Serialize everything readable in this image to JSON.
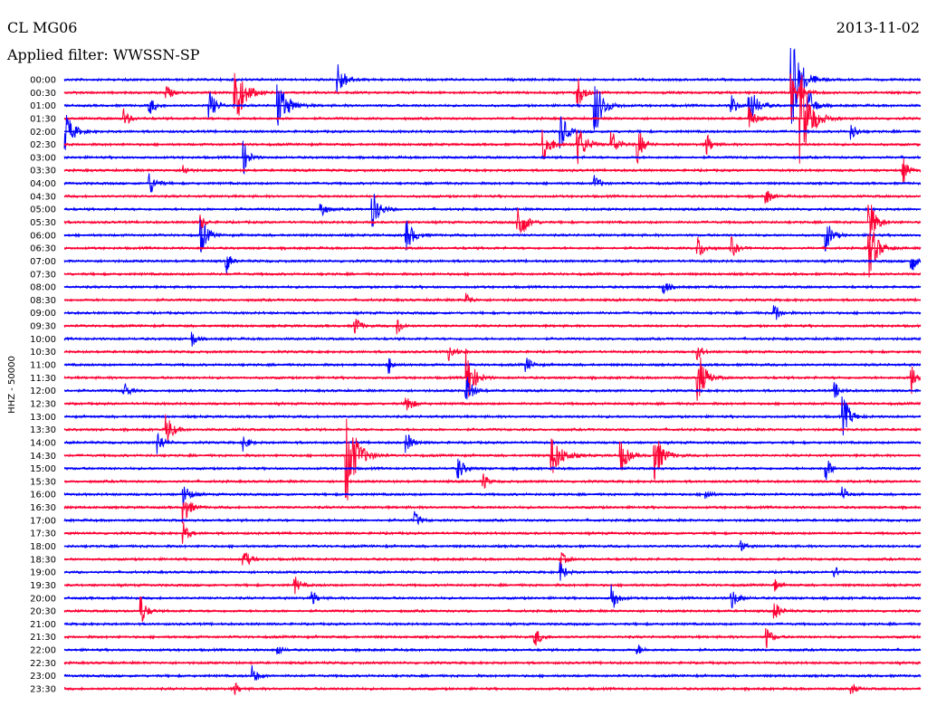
{
  "header": {
    "station": "CL MG06",
    "filter": "Applied filter: WWSSN-SP",
    "date": "2013-11-02"
  },
  "chart_data": {
    "type": "line",
    "title": "CL MG06",
    "subtitle": "Applied filter: WWSSN-SP",
    "date": "2013-11-02",
    "ylabel": "HHZ - 50000",
    "xlabel": "",
    "trace_duration_min": 30,
    "colors": [
      "#0000ff",
      "#ff0033"
    ],
    "grid": false,
    "rows": [
      {
        "label": "00:00",
        "color": "#0000ff",
        "events": [
          [
            0.32,
            0.8,
            0.8
          ],
          [
            0.85,
            2.5,
            0.9
          ]
        ]
      },
      {
        "label": "00:30",
        "color": "#ff0033",
        "events": [
          [
            0.12,
            0.4,
            0.5
          ],
          [
            0.2,
            1.8,
            0.9
          ],
          [
            0.6,
            0.8,
            0.6
          ],
          [
            0.85,
            1.2,
            0.8
          ]
        ]
      },
      {
        "label": "01:00",
        "color": "#0000ff",
        "events": [
          [
            0.1,
            0.5,
            0.5
          ],
          [
            0.17,
            0.8,
            0.6
          ],
          [
            0.25,
            1.2,
            1.0
          ],
          [
            0.62,
            1.5,
            0.8
          ],
          [
            0.78,
            0.5,
            0.5
          ],
          [
            0.8,
            1.0,
            0.8
          ],
          [
            0.87,
            0.8,
            0.6
          ]
        ]
      },
      {
        "label": "01:30",
        "color": "#ff0033",
        "events": [
          [
            0.07,
            0.5,
            0.5
          ],
          [
            0.8,
            0.6,
            0.6
          ],
          [
            0.86,
            2.5,
            1.0
          ]
        ]
      },
      {
        "label": "02:00",
        "color": "#0000ff",
        "events": [
          [
            0.0,
            1.2,
            0.8
          ],
          [
            0.58,
            1.0,
            0.6
          ],
          [
            0.92,
            0.4,
            0.5
          ]
        ]
      },
      {
        "label": "02:30",
        "color": "#ff0033",
        "events": [
          [
            0.56,
            0.8,
            0.8
          ],
          [
            0.6,
            1.0,
            0.8
          ],
          [
            0.64,
            0.7,
            0.6
          ],
          [
            0.67,
            1.0,
            0.5
          ],
          [
            0.75,
            0.6,
            0.5
          ]
        ]
      },
      {
        "label": "03:00",
        "color": "#0000ff",
        "events": [
          [
            0.21,
            0.8,
            0.5
          ]
        ]
      },
      {
        "label": "03:30",
        "color": "#ff0033",
        "events": [
          [
            0.14,
            0.3,
            0.4
          ],
          [
            0.98,
            0.6,
            0.5
          ]
        ]
      },
      {
        "label": "04:00",
        "color": "#0000ff",
        "events": [
          [
            0.1,
            0.6,
            0.6
          ],
          [
            0.62,
            0.4,
            0.5
          ]
        ]
      },
      {
        "label": "04:30",
        "color": "#ff0033",
        "events": [
          [
            0.82,
            0.4,
            0.5
          ]
        ]
      },
      {
        "label": "05:00",
        "color": "#0000ff",
        "events": [
          [
            0.3,
            0.5,
            0.5
          ],
          [
            0.36,
            1.0,
            0.7
          ]
        ]
      },
      {
        "label": "05:30",
        "color": "#ff0033",
        "events": [
          [
            0.16,
            0.4,
            0.4
          ],
          [
            0.53,
            1.2,
            0.7
          ],
          [
            0.94,
            1.2,
            0.7
          ]
        ]
      },
      {
        "label": "06:00",
        "color": "#0000ff",
        "events": [
          [
            0.16,
            1.0,
            0.6
          ],
          [
            0.4,
            0.8,
            0.7
          ],
          [
            0.89,
            0.8,
            0.6
          ]
        ]
      },
      {
        "label": "06:30",
        "color": "#ff0033",
        "events": [
          [
            0.74,
            0.6,
            0.6
          ],
          [
            0.78,
            0.5,
            0.5
          ],
          [
            0.94,
            1.5,
            0.8
          ]
        ]
      },
      {
        "label": "07:00",
        "color": "#0000ff",
        "events": [
          [
            0.19,
            0.6,
            0.4
          ],
          [
            0.99,
            0.6,
            0.4
          ]
        ]
      },
      {
        "label": "07:30",
        "color": "#ff0033",
        "events": []
      },
      {
        "label": "08:00",
        "color": "#0000ff",
        "events": [
          [
            0.7,
            0.4,
            0.5
          ]
        ]
      },
      {
        "label": "08:30",
        "color": "#ff0033",
        "events": [
          [
            0.47,
            0.4,
            0.4
          ]
        ]
      },
      {
        "label": "09:00",
        "color": "#0000ff",
        "events": [
          [
            0.83,
            0.5,
            0.5
          ]
        ]
      },
      {
        "label": "09:30",
        "color": "#ff0033",
        "events": [
          [
            0.34,
            0.5,
            0.5
          ],
          [
            0.39,
            0.5,
            0.4
          ]
        ]
      },
      {
        "label": "10:00",
        "color": "#0000ff",
        "events": [
          [
            0.15,
            0.4,
            0.4
          ]
        ]
      },
      {
        "label": "10:30",
        "color": "#ff0033",
        "events": [
          [
            0.45,
            0.5,
            0.5
          ],
          [
            0.74,
            0.4,
            0.5
          ]
        ]
      },
      {
        "label": "11:00",
        "color": "#0000ff",
        "events": [
          [
            0.38,
            0.4,
            0.4
          ],
          [
            0.54,
            0.4,
            0.5
          ]
        ]
      },
      {
        "label": "11:30",
        "color": "#ff0033",
        "events": [
          [
            0.47,
            1.5,
            0.7
          ],
          [
            0.74,
            1.5,
            0.7
          ],
          [
            0.99,
            0.8,
            0.6
          ]
        ]
      },
      {
        "label": "12:00",
        "color": "#0000ff",
        "events": [
          [
            0.07,
            0.5,
            0.5
          ],
          [
            0.47,
            0.8,
            0.6
          ],
          [
            0.9,
            0.4,
            0.5
          ]
        ]
      },
      {
        "label": "12:30",
        "color": "#ff0033",
        "events": [
          [
            0.4,
            0.6,
            0.5
          ]
        ]
      },
      {
        "label": "13:00",
        "color": "#0000ff",
        "events": [
          [
            0.91,
            1.0,
            0.7
          ]
        ]
      },
      {
        "label": "13:30",
        "color": "#ff0033",
        "events": [
          [
            0.12,
            0.8,
            0.6
          ]
        ]
      },
      {
        "label": "14:00",
        "color": "#0000ff",
        "events": [
          [
            0.11,
            0.6,
            0.5
          ],
          [
            0.21,
            0.4,
            0.5
          ],
          [
            0.4,
            0.5,
            0.6
          ]
        ]
      },
      {
        "label": "14:30",
        "color": "#ff0033",
        "events": [
          [
            0.33,
            2.5,
            1.0
          ],
          [
            0.57,
            1.0,
            1.0
          ],
          [
            0.65,
            0.9,
            0.7
          ],
          [
            0.69,
            1.2,
            0.8
          ]
        ]
      },
      {
        "label": "15:00",
        "color": "#0000ff",
        "events": [
          [
            0.46,
            0.6,
            0.6
          ],
          [
            0.89,
            0.6,
            0.5
          ]
        ]
      },
      {
        "label": "15:30",
        "color": "#ff0033",
        "events": [
          [
            0.49,
            0.4,
            0.4
          ]
        ]
      },
      {
        "label": "16:00",
        "color": "#0000ff",
        "events": [
          [
            0.14,
            0.6,
            0.6
          ],
          [
            0.75,
            0.3,
            0.4
          ],
          [
            0.91,
            0.4,
            0.4
          ]
        ]
      },
      {
        "label": "16:30",
        "color": "#ff0033",
        "events": [
          [
            0.14,
            0.8,
            0.6
          ]
        ]
      },
      {
        "label": "17:00",
        "color": "#0000ff",
        "events": [
          [
            0.41,
            0.4,
            0.5
          ]
        ]
      },
      {
        "label": "17:30",
        "color": "#ff0033",
        "events": [
          [
            0.14,
            0.5,
            0.5
          ]
        ]
      },
      {
        "label": "18:00",
        "color": "#0000ff",
        "events": [
          [
            0.79,
            0.3,
            0.4
          ]
        ]
      },
      {
        "label": "18:30",
        "color": "#ff0033",
        "events": [
          [
            0.21,
            0.5,
            0.6
          ],
          [
            0.58,
            0.4,
            0.5
          ]
        ]
      },
      {
        "label": "19:00",
        "color": "#0000ff",
        "events": [
          [
            0.58,
            0.5,
            0.5
          ],
          [
            0.9,
            0.3,
            0.4
          ]
        ]
      },
      {
        "label": "19:30",
        "color": "#ff0033",
        "events": [
          [
            0.27,
            0.4,
            0.5
          ],
          [
            0.83,
            0.3,
            0.4
          ]
        ]
      },
      {
        "label": "20:00",
        "color": "#0000ff",
        "events": [
          [
            0.29,
            0.4,
            0.4
          ],
          [
            0.64,
            0.8,
            0.5
          ],
          [
            0.78,
            0.5,
            0.6
          ]
        ]
      },
      {
        "label": "20:30",
        "color": "#ff0033",
        "events": [
          [
            0.09,
            0.8,
            0.5
          ],
          [
            0.83,
            0.5,
            0.5
          ]
        ]
      },
      {
        "label": "21:00",
        "color": "#0000ff",
        "events": []
      },
      {
        "label": "21:30",
        "color": "#ff0033",
        "events": [
          [
            0.55,
            0.5,
            0.6
          ],
          [
            0.82,
            0.6,
            0.5
          ]
        ]
      },
      {
        "label": "22:00",
        "color": "#0000ff",
        "events": [
          [
            0.25,
            0.3,
            0.4
          ],
          [
            0.67,
            0.3,
            0.4
          ]
        ]
      },
      {
        "label": "22:30",
        "color": "#ff0033",
        "events": []
      },
      {
        "label": "23:00",
        "color": "#0000ff",
        "events": [
          [
            0.22,
            0.5,
            0.5
          ]
        ]
      },
      {
        "label": "23:30",
        "color": "#ff0033",
        "events": [
          [
            0.2,
            0.3,
            0.4
          ],
          [
            0.92,
            0.3,
            0.4
          ]
        ]
      }
    ]
  }
}
